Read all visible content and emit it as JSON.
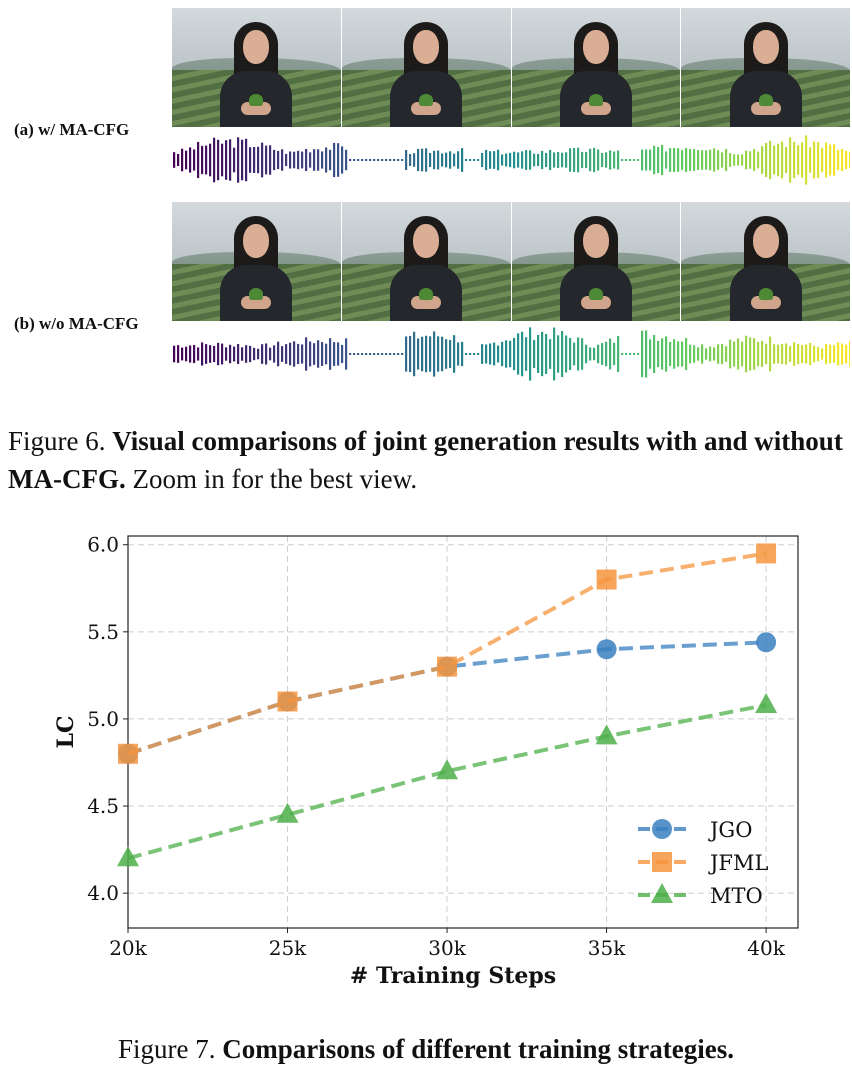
{
  "figure6": {
    "row_a_label": "(a) w/ MA-CFG",
    "row_b_label": "(b) w/o MA-CFG",
    "caption_prefix": "Figure 6.",
    "caption_bold": "Visual comparisons of joint generation results with and without MA-CFG.",
    "caption_rest": "Zoom in for the best view."
  },
  "figure7": {
    "caption_prefix": "Figure 7.",
    "caption_bold": "Comparisons of different training strategies."
  },
  "chart_data": {
    "type": "line",
    "title": "",
    "xlabel": "# Training Steps",
    "ylabel": "LC",
    "categories": [
      "20k",
      "25k",
      "30k",
      "35k",
      "40k"
    ],
    "x": [
      20,
      25,
      30,
      35,
      40
    ],
    "xlim": [
      20,
      41
    ],
    "ylim": [
      3.8,
      6.05
    ],
    "yticks": [
      "4.0",
      "4.5",
      "5.0",
      "5.5",
      "6.0"
    ],
    "ytick_values": [
      4.0,
      4.5,
      5.0,
      5.5,
      6.0
    ],
    "grid": true,
    "legend_position": "lower-right",
    "series": [
      {
        "name": "JGO",
        "values": [
          4.8,
          5.1,
          5.3,
          5.4,
          5.44
        ],
        "color": "#3a7fbf",
        "marker": "circle"
      },
      {
        "name": "JFML",
        "values": [
          4.8,
          5.1,
          5.3,
          5.8,
          5.95
        ],
        "color": "#f6953d",
        "marker": "square"
      },
      {
        "name": "MTO",
        "values": [
          4.2,
          4.45,
          4.7,
          4.9,
          5.08
        ],
        "color": "#4daf4a",
        "marker": "triangle"
      }
    ]
  }
}
